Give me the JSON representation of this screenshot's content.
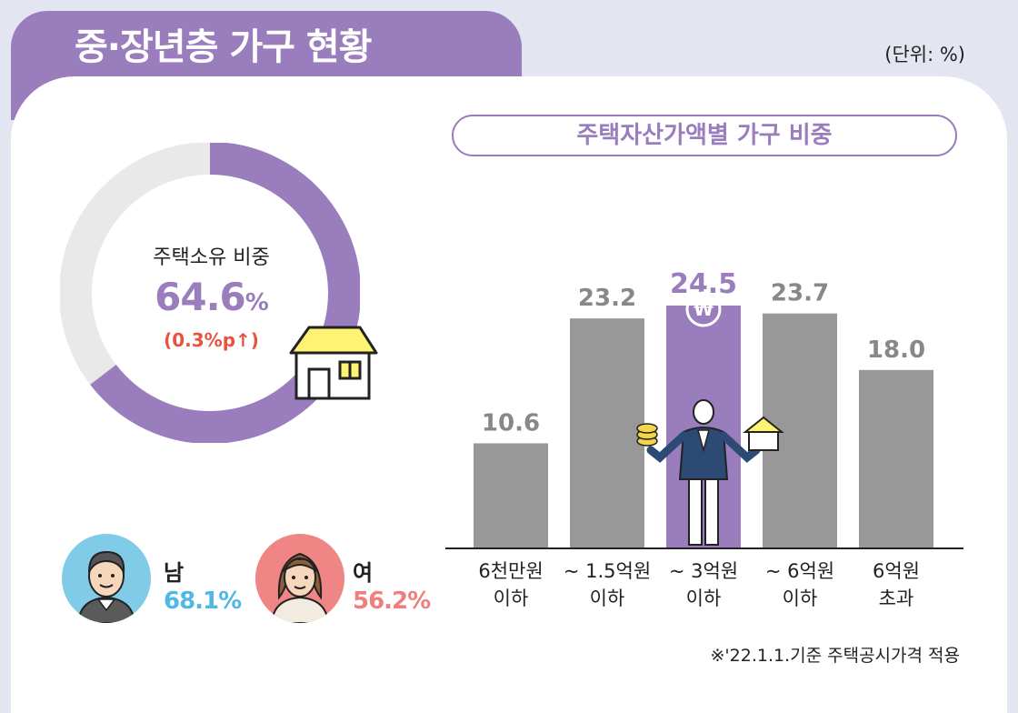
{
  "header": {
    "title": "중·장년층 가구 현황",
    "unit": "(단위: %)"
  },
  "ownership": {
    "label": "주택소유 비중",
    "value": "64.6",
    "value_unit": "%",
    "change": "(0.3%p",
    "change_arrow": "↑)",
    "fraction": 0.646
  },
  "gender": {
    "male": {
      "label": "남",
      "value": "68.1%"
    },
    "female": {
      "label": "여",
      "value": "56.2%"
    }
  },
  "chart_data": {
    "type": "bar",
    "title": "주택자산가액별 가구 비중",
    "categories": [
      [
        "6천만원",
        "이하"
      ],
      [
        "~ 1.5억원",
        "이하"
      ],
      [
        "~ 3억원",
        "이하"
      ],
      [
        "~ 6억원",
        "이하"
      ],
      [
        "6억원",
        "초과"
      ]
    ],
    "values": [
      10.6,
      23.2,
      24.5,
      23.7,
      18.0
    ],
    "value_labels": [
      "10.6",
      "23.2",
      "24.5",
      "23.7",
      "18.0"
    ],
    "highlight_index": 2,
    "ylim": [
      0,
      30
    ]
  },
  "colors": {
    "accent": "#9a7dbc",
    "bar": "#989898",
    "change": "#e8523f",
    "male": "#4fb8e4",
    "female": "#ef7f7f"
  },
  "footnote": "※'22.1.1.기준 주택공시가격 적용"
}
